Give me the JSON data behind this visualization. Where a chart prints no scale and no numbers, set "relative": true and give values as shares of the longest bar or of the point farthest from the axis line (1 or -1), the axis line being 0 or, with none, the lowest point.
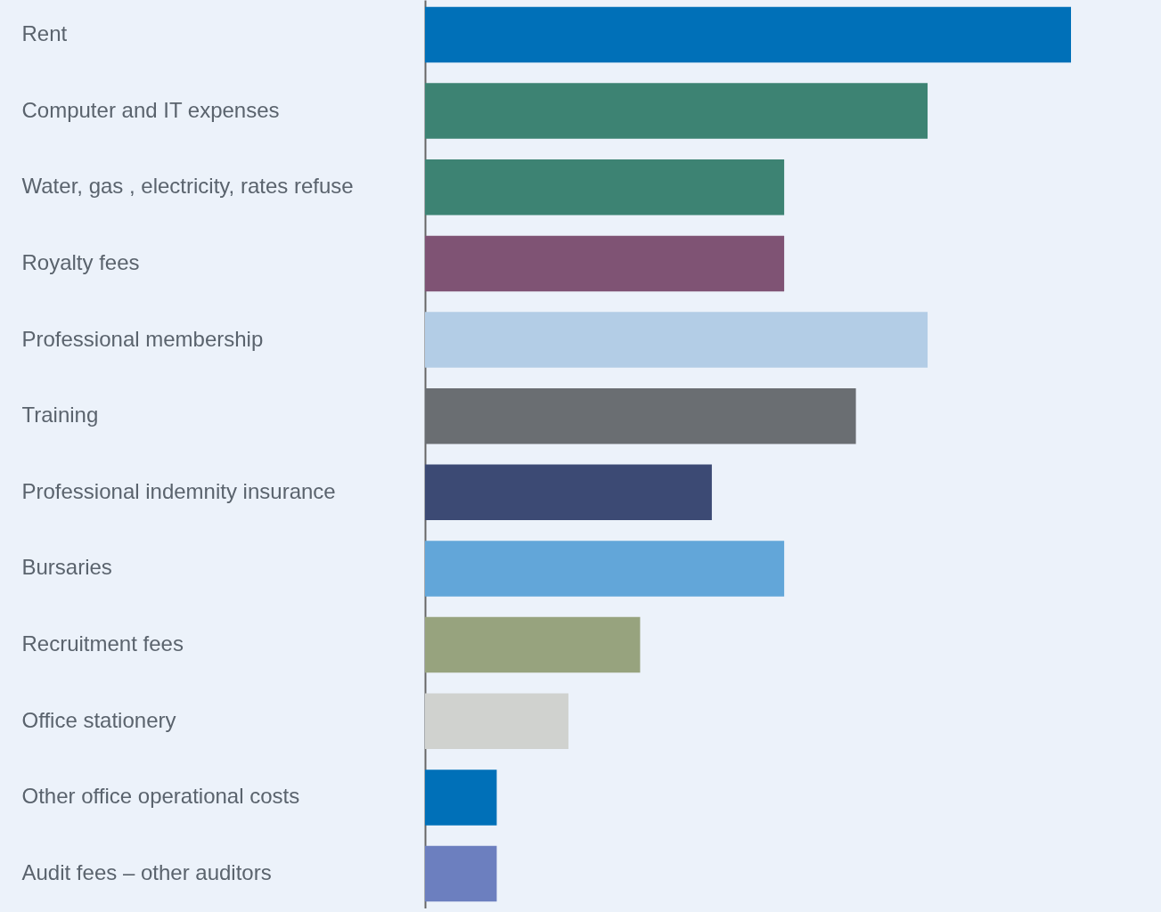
{
  "chart_data": {
    "type": "bar",
    "orientation": "horizontal",
    "relative": true,
    "categories": [
      "Rent",
      "Computer and IT expenses",
      "Water, gas , electricity, rates refuse",
      "Royalty fees",
      "Professional membership",
      "Training",
      "Professional indemnity insurance",
      "Bursaries",
      "Recruitment fees",
      "Office stationery",
      "Other office operational costs",
      "Audit fees – other auditors"
    ],
    "values": [
      1,
      0.778,
      0.556,
      0.556,
      0.778,
      0.667,
      0.444,
      0.556,
      0.333,
      0.222,
      0.111,
      0.111
    ],
    "colors": [
      "#0070b8",
      "#3d8373",
      "#3d8373",
      "#7f5374",
      "#b3cde6",
      "#6a6e72",
      "#3c4a74",
      "#62a6d9",
      "#97a37e",
      "#d0d2cf",
      "#0070b8",
      "#6c7fbf"
    ]
  }
}
